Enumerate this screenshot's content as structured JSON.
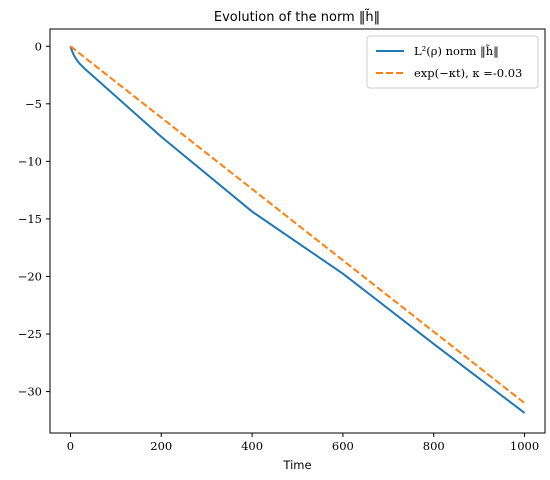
{
  "chart_data": {
    "type": "line",
    "title": "Evolution of the norm ‖h̃‖",
    "xlabel": "Time",
    "ylabel": "",
    "xlim": [
      -45,
      1045
    ],
    "ylim": [
      -33.6,
      1.5
    ],
    "xticks": [
      0,
      200,
      400,
      600,
      800,
      1000
    ],
    "yticks": [
      0,
      -5,
      -10,
      -15,
      -20,
      -25,
      -30
    ],
    "xtick_labels": [
      "0",
      "200",
      "400",
      "600",
      "800",
      "1000"
    ],
    "ytick_labels": [
      "0",
      "−5",
      "−10",
      "−15",
      "−20",
      "−25",
      "−30"
    ],
    "grid": false,
    "legend_position": "top-right",
    "series": [
      {
        "name": "L²(ρ) norm ‖h̃‖",
        "color": "#1f77b4",
        "style": "solid",
        "x": [
          0,
          3,
          6,
          10,
          15,
          20,
          25,
          30,
          200,
          400,
          600,
          800,
          1000
        ],
        "y": [
          0,
          -0.35,
          -0.65,
          -0.95,
          -1.25,
          -1.5,
          -1.7,
          -1.9,
          -7.86,
          -14.36,
          -19.76,
          -25.86,
          -31.86
        ]
      },
      {
        "name": "exp(−κt), κ =-0.03",
        "color": "#ff7f0e",
        "style": "dashed",
        "x": [
          0,
          1000
        ],
        "y": [
          0,
          -31
        ]
      }
    ]
  }
}
